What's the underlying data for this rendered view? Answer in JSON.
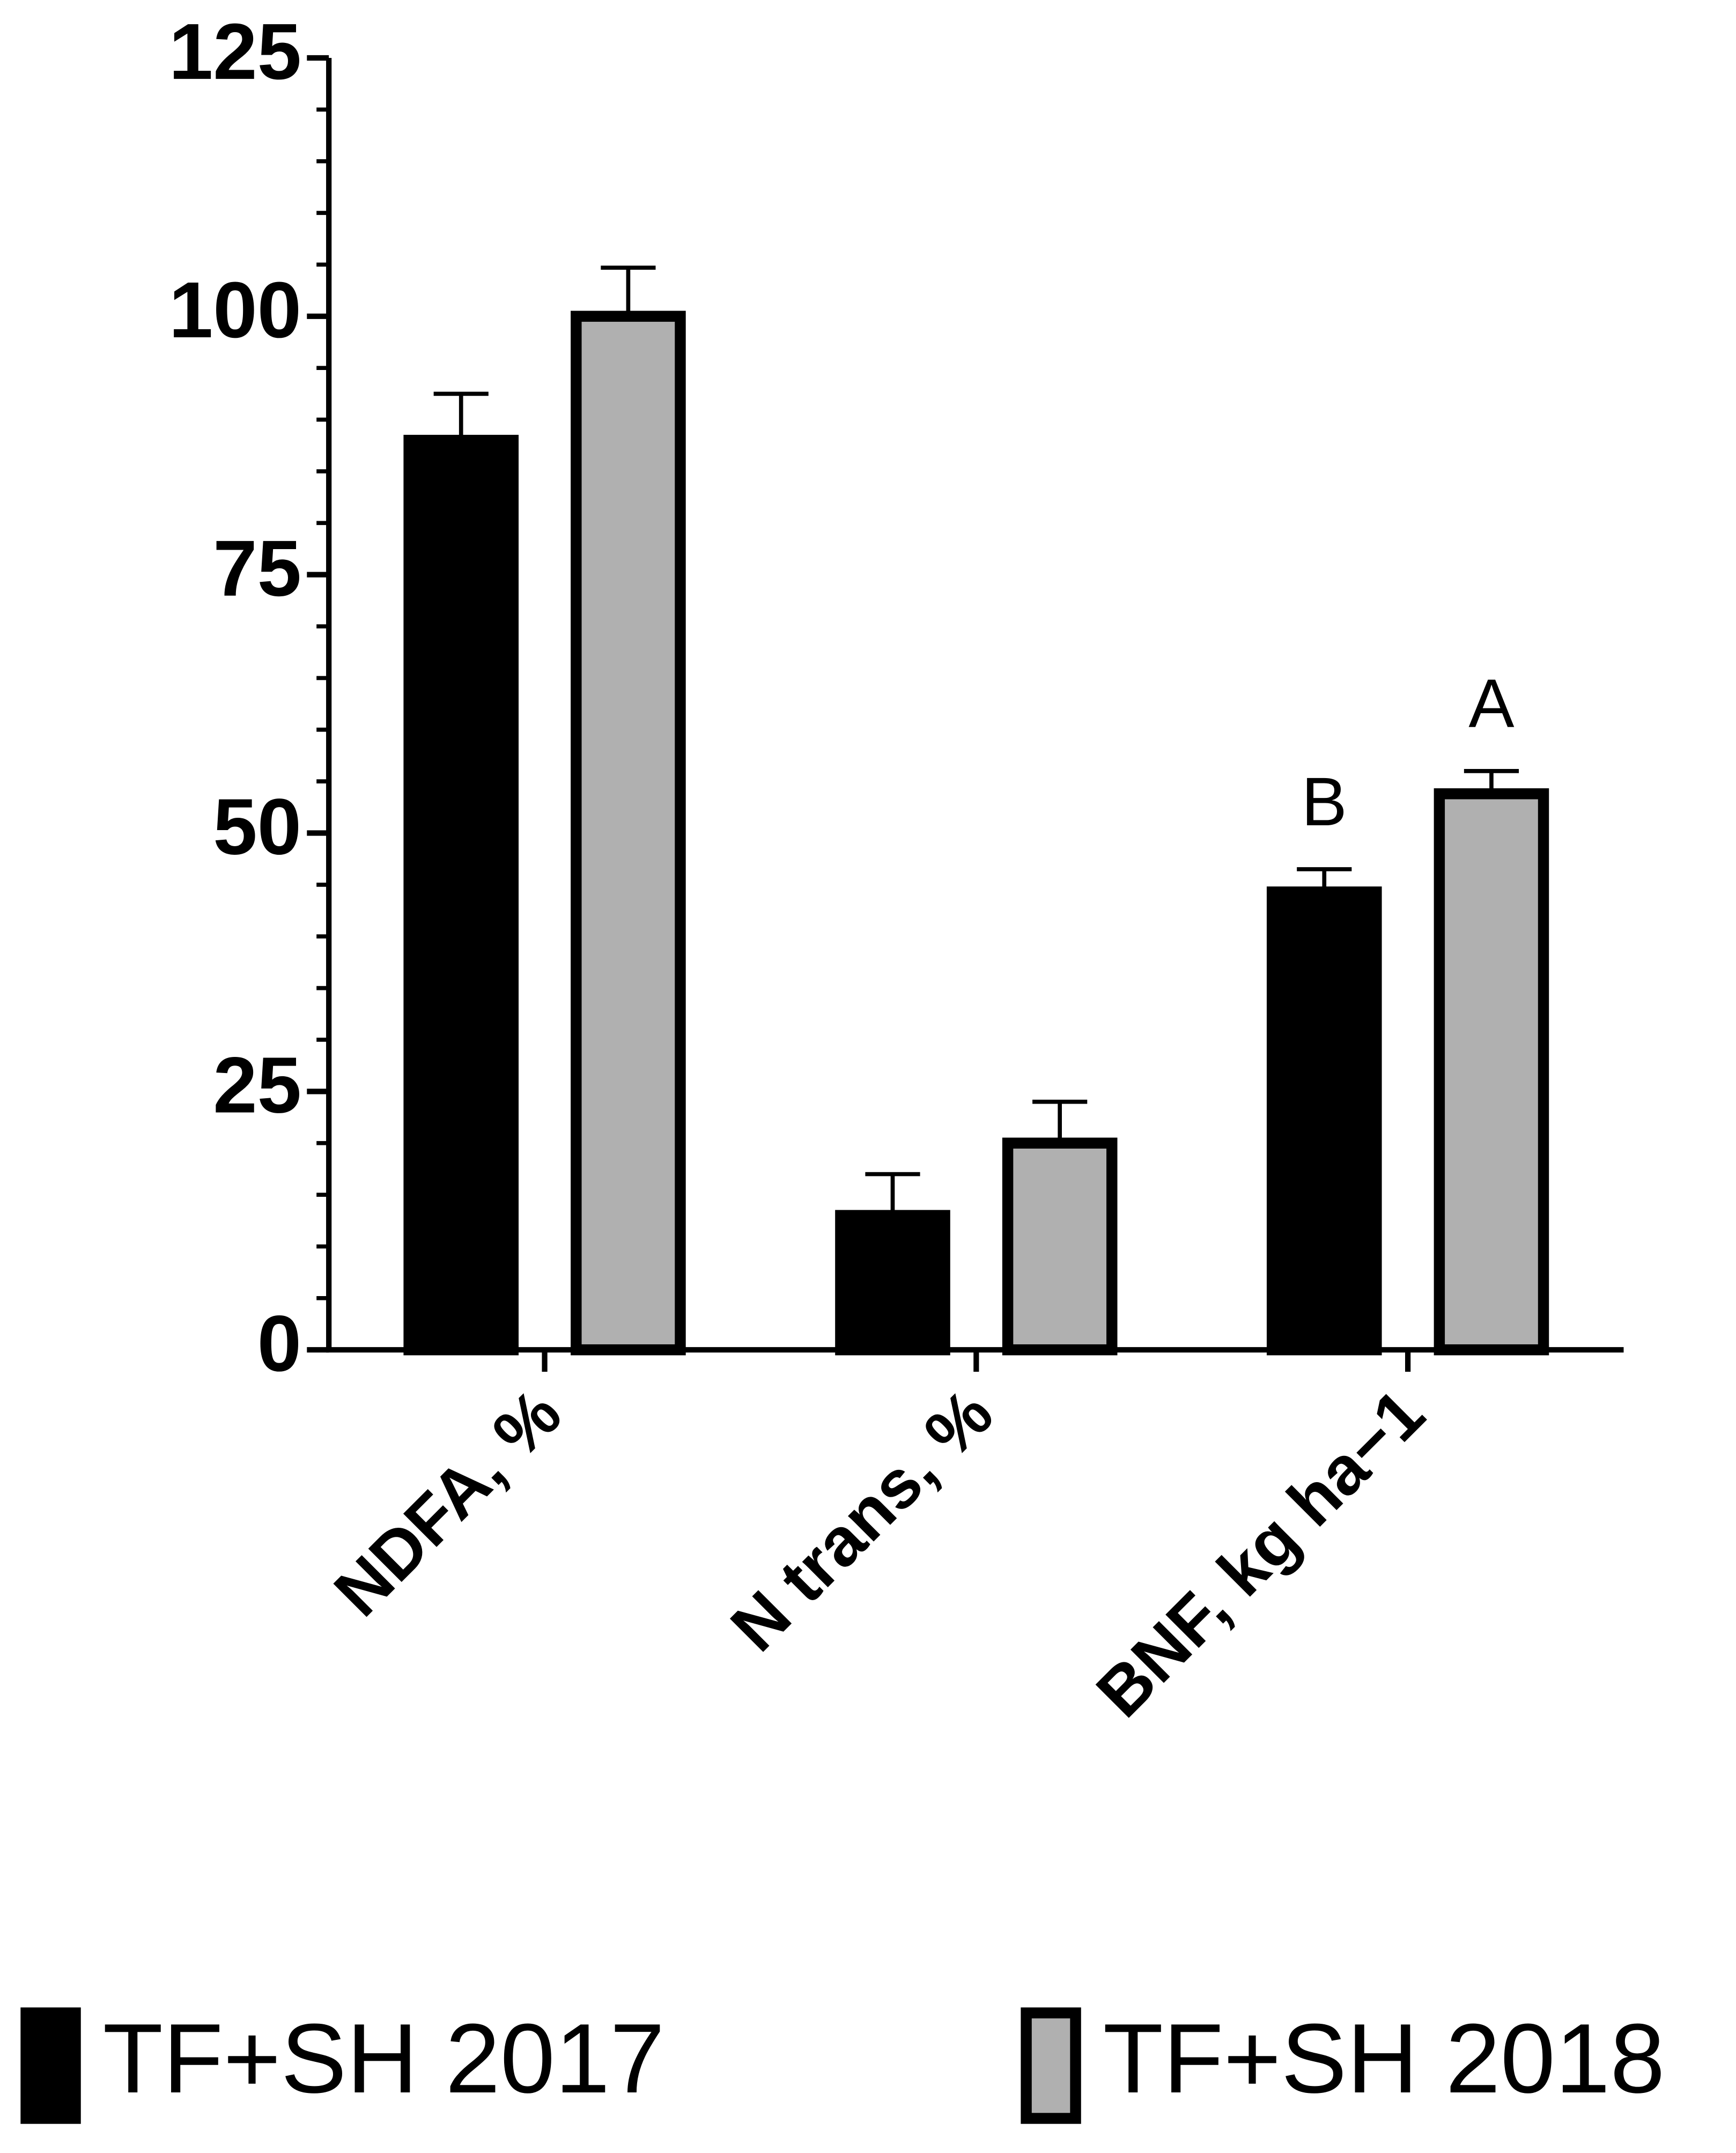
{
  "chart_data": {
    "type": "bar",
    "categories": [
      "NDFA, %",
      "N trans, %",
      "BNF, kg ha−1"
    ],
    "series": [
      {
        "name": "TF+SH 2017",
        "color": "#000000",
        "edge": "#000000",
        "values": [
          88,
          13,
          44.3
        ],
        "errors": [
          4.5,
          4,
          2.2
        ],
        "letters": [
          null,
          null,
          "B"
        ]
      },
      {
        "name": "TF+SH 2018",
        "color": "#b0b0b0",
        "edge": "#000000",
        "values": [
          100,
          20,
          53.8
        ],
        "errors": [
          4.7,
          4,
          2.2
        ],
        "letters": [
          null,
          null,
          "A"
        ]
      }
    ],
    "ylim": [
      0,
      125
    ],
    "yticks": [
      0,
      25,
      50,
      75,
      100,
      125
    ],
    "yminorticks": [
      5,
      10,
      15,
      20,
      30,
      35,
      40,
      45,
      55,
      60,
      65,
      70,
      80,
      85,
      90,
      95,
      105,
      110,
      115,
      120
    ],
    "legend": "bottom"
  }
}
